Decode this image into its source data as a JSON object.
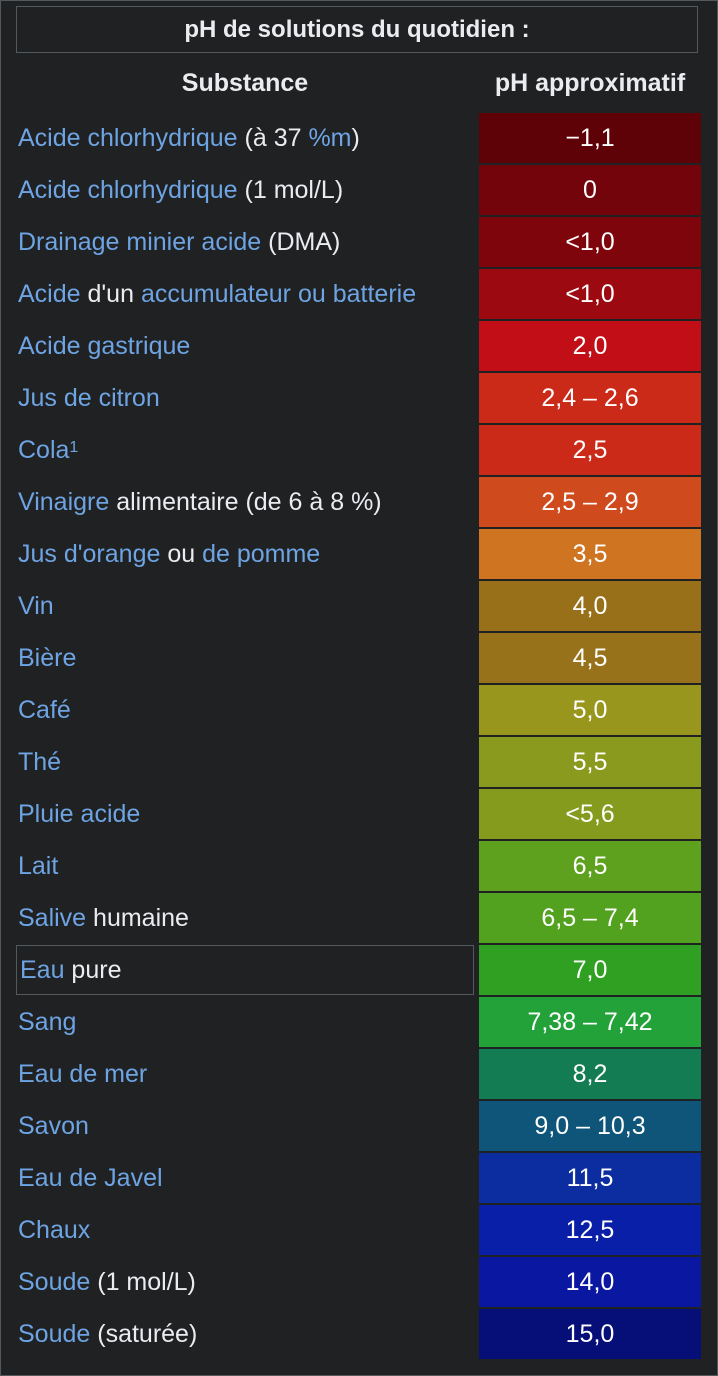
{
  "caption": "pH de solutions du quotidien :",
  "headers": {
    "substance": "Substance",
    "ph": "pH approximatif"
  },
  "rows": [
    {
      "parts": [
        {
          "t": "Acide chlorhydrique",
          "link": true
        },
        {
          "t": " (à 37 ",
          "link": false
        },
        {
          "t": "%m",
          "link": true
        },
        {
          "t": ")",
          "link": false
        }
      ],
      "ph": "−1,1",
      "color": "#5e0208"
    },
    {
      "parts": [
        {
          "t": "Acide chlorhydrique",
          "link": true
        },
        {
          "t": " (1 mol/L)",
          "link": false
        }
      ],
      "ph": "0",
      "color": "#74040b"
    },
    {
      "parts": [
        {
          "t": "Drainage minier acide",
          "link": true
        },
        {
          "t": " (DMA)",
          "link": false
        }
      ],
      "ph": "<1,0",
      "color": "#7e050c"
    },
    {
      "parts": [
        {
          "t": "Acide",
          "link": true
        },
        {
          "t": " d'un ",
          "link": false
        },
        {
          "t": "accumulateur ou batterie",
          "link": true
        }
      ],
      "ph": "<1,0",
      "color": "#9c0910"
    },
    {
      "parts": [
        {
          "t": "Acide gastrique",
          "link": true
        }
      ],
      "ph": "2,0",
      "color": "#c20e17"
    },
    {
      "parts": [
        {
          "t": "Jus de citron",
          "link": true
        }
      ],
      "ph": "2,4 – 2,6",
      "color": "#cc2a19"
    },
    {
      "parts": [
        {
          "t": "Cola",
          "link": true
        }
      ],
      "sup": "1",
      "ph": "2,5",
      "color": "#cc2a19"
    },
    {
      "parts": [
        {
          "t": "Vinaigre",
          "link": true
        },
        {
          "t": " alimentaire (de 6 à 8 %)",
          "link": false
        }
      ],
      "ph": "2,5 – 2,9",
      "color": "#cf4b1d"
    },
    {
      "parts": [
        {
          "t": "Jus d'orange",
          "link": true
        },
        {
          "t": " ou ",
          "link": false
        },
        {
          "t": "de pomme",
          "link": true
        }
      ],
      "ph": "3,5",
      "color": "#cf7521"
    },
    {
      "parts": [
        {
          "t": "Vin",
          "link": true
        }
      ],
      "ph": "4,0",
      "color": "#987019"
    },
    {
      "parts": [
        {
          "t": "Bière",
          "link": true
        }
      ],
      "ph": "4,5",
      "color": "#98721a"
    },
    {
      "parts": [
        {
          "t": "Café",
          "link": true
        }
      ],
      "ph": "5,0",
      "color": "#98961c"
    },
    {
      "parts": [
        {
          "t": "Thé",
          "link": true
        }
      ],
      "ph": "5,5",
      "color": "#8a9a1e"
    },
    {
      "parts": [
        {
          "t": "Pluie acide",
          "link": true
        }
      ],
      "ph": "<5,6",
      "color": "#859b1d"
    },
    {
      "parts": [
        {
          "t": "Lait",
          "link": true
        }
      ],
      "ph": "6,5",
      "color": "#5da11e"
    },
    {
      "parts": [
        {
          "t": "Salive",
          "link": true
        },
        {
          "t": " humaine",
          "link": false
        }
      ],
      "ph": "6,5 – 7,4",
      "color": "#52a21f"
    },
    {
      "parts": [
        {
          "t": "Eau",
          "link": true
        },
        {
          "t": " pure",
          "link": false
        }
      ],
      "ph": "7,0",
      "color": "#2fa022",
      "boxed": true
    },
    {
      "parts": [
        {
          "t": "Sang",
          "link": true
        }
      ],
      "ph": "7,38 – 7,42",
      "color": "#22a238"
    },
    {
      "parts": [
        {
          "t": "Eau de mer",
          "link": true
        }
      ],
      "ph": "8,2",
      "color": "#137c52"
    },
    {
      "parts": [
        {
          "t": "Savon",
          "link": true
        }
      ],
      "ph": "9,0 – 10,3",
      "color": "#0f5479"
    },
    {
      "parts": [
        {
          "t": "Eau de Javel",
          "link": true
        }
      ],
      "ph": "11,5",
      "color": "#0b2d9f"
    },
    {
      "parts": [
        {
          "t": "Chaux",
          "link": true
        }
      ],
      "ph": "12,5",
      "color": "#0a1fa7"
    },
    {
      "parts": [
        {
          "t": "Soude",
          "link": true
        },
        {
          "t": " (1 mol/L)",
          "link": false
        }
      ],
      "ph": "14,0",
      "color": "#0917a1"
    },
    {
      "parts": [
        {
          "t": "Soude",
          "link": true
        },
        {
          "t": " (saturée)",
          "link": false
        }
      ],
      "ph": "15,0",
      "color": "#060f78"
    }
  ]
}
